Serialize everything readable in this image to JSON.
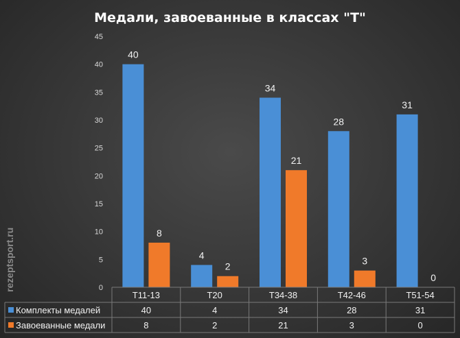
{
  "chart_data": {
    "type": "bar",
    "title": "Медали,  завоеванные  в классах \"Т\"",
    "categories": [
      "T11-13",
      "T20",
      "T34-38",
      "T42-46",
      "T51-54"
    ],
    "series": [
      {
        "name": "Комплекты медалей",
        "color": "#4a8fd6",
        "values": [
          40,
          4,
          34,
          28,
          31
        ]
      },
      {
        "name": "Завоеванные медали",
        "color": "#f07a2a",
        "values": [
          8,
          2,
          21,
          3,
          0
        ]
      }
    ],
    "ylim": [
      0,
      45
    ],
    "yticks": [
      0,
      5,
      10,
      15,
      20,
      25,
      30,
      35,
      40,
      45
    ],
    "grid": false,
    "legend": "data-table",
    "data_table": true
  },
  "watermark": "rezeptsport.ru"
}
